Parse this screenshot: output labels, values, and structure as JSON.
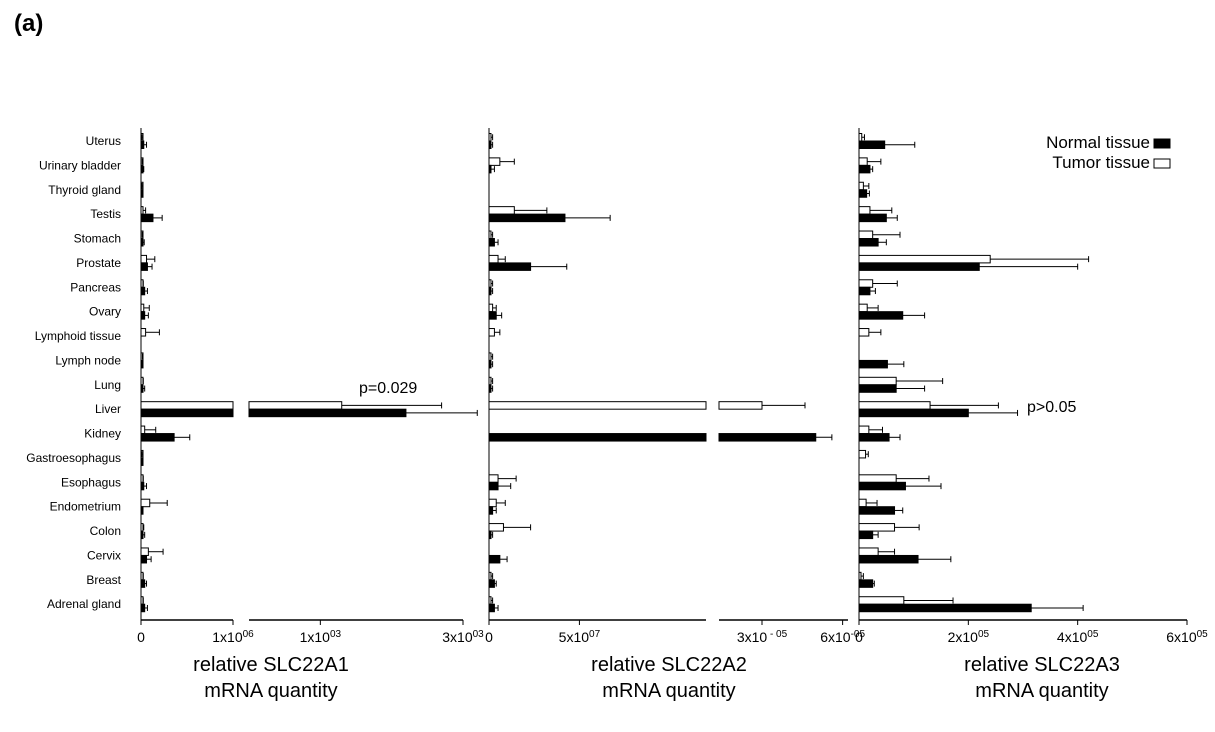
{
  "panel_label": "(a)",
  "colors": {
    "normal": "#000000",
    "tumor": "#ffffff",
    "axis": "#000000"
  },
  "chart_data": {
    "type": "bar",
    "orientation": "horizontal",
    "grouped": true,
    "error_bars": true,
    "legend": {
      "placement": "top-right",
      "entries": [
        {
          "series": "normal",
          "label": "Normal tissue",
          "color": "#000000"
        },
        {
          "series": "tumor",
          "label": "Tumor tissue",
          "color": "#ffffff"
        }
      ]
    },
    "categories": [
      "Uterus",
      "Urinary bladder",
      "Thyroid gland",
      "Testis",
      "Stomach",
      "Prostate",
      "Pancreas",
      "Ovary",
      "Lymphoid tissue",
      "Lymph node",
      "Lung",
      "Liver",
      "Kidney",
      "Gastroesophagus",
      "Esophagus",
      "Endometrium",
      "Colon",
      "Cervix",
      "Breast",
      "Adrenal gland"
    ],
    "panels": [
      {
        "xlabel_line1": "relative SLC22A1",
        "xlabel_line2": "mRNA quantity",
        "axis_break": true,
        "segments": [
          {
            "xlim": [
              0,
              1000000
            ],
            "ticks": [
              {
                "value": 0,
                "label": "0"
              },
              {
                "value": 1000000,
                "label": "1x10",
                "exp": "06"
              }
            ]
          },
          {
            "xlim": [
              0,
              3000
            ],
            "ticks": [
              {
                "value": 1000,
                "label": "1x10",
                "exp": "03"
              },
              {
                "value": 3000,
                "label": "3x10",
                "exp": "03"
              }
            ]
          }
        ],
        "annotation": {
          "category": "Liver",
          "text": "p=0.029"
        },
        "series": [
          {
            "id": "tumor",
            "values": [
              {
                "v": 4000,
                "e": 6000
              },
              {
                "v": 5000,
                "e": 8000
              },
              {
                "v": 4000,
                "e": 6000
              },
              {
                "v": 20000,
                "e": 30000
              },
              {
                "v": 5000,
                "e": 8000
              },
              {
                "v": 60000,
                "e": 90000
              },
              {
                "v": 10000,
                "e": 15000
              },
              {
                "v": 30000,
                "e": 60000
              },
              {
                "v": 50000,
                "e": 150000
              },
              {
                "v": 5000,
                "e": 10000
              },
              {
                "v": 10000,
                "e": 15000
              },
              {
                "v": 1300,
                "e": 1400,
                "segment": 1
              },
              {
                "v": 40000,
                "e": 120000
              },
              {
                "v": 5000,
                "e": 5000
              },
              {
                "v": 10000,
                "e": 15000
              },
              {
                "v": 95000,
                "e": 190000
              },
              {
                "v": 10000,
                "e": 20000
              },
              {
                "v": 80000,
                "e": 160000
              },
              {
                "v": 10000,
                "e": 15000
              },
              {
                "v": 10000,
                "e": 15000
              }
            ]
          },
          {
            "id": "normal",
            "values": [
              {
                "v": 30000,
                "e": 30000
              },
              {
                "v": 10000,
                "e": 20000
              },
              {
                "v": 5000,
                "e": 10000
              },
              {
                "v": 130000,
                "e": 100000
              },
              {
                "v": 20000,
                "e": 15000
              },
              {
                "v": 70000,
                "e": 50000
              },
              {
                "v": 40000,
                "e": 30000
              },
              {
                "v": 40000,
                "e": 40000
              },
              {
                "v": 0,
                "e": 0
              },
              {
                "v": 10000,
                "e": 10000
              },
              {
                "v": 20000,
                "e": 20000
              },
              {
                "v": 2200,
                "e": 1000,
                "segment": 1
              },
              {
                "v": 360000,
                "e": 170000
              },
              {
                "v": 5000,
                "e": 5000
              },
              {
                "v": 30000,
                "e": 30000
              },
              {
                "v": 10000,
                "e": 10000
              },
              {
                "v": 20000,
                "e": 20000
              },
              {
                "v": 60000,
                "e": 50000
              },
              {
                "v": 40000,
                "e": 20000
              },
              {
                "v": 40000,
                "e": 30000
              }
            ]
          }
        ]
      },
      {
        "xlabel_line1": "relative  SLC22A2",
        "xlabel_line2": "mRNA  quantity",
        "axis_break": true,
        "segments": [
          {
            "xlim": [
              0,
              120000000
            ],
            "ticks": [
              {
                "value": 0,
                "label": "0"
              },
              {
                "value": 50000000,
                "label": "5x10",
                "exp": "07"
              }
            ]
          },
          {
            "xlim": [
              1.4e-05,
              6.2e-05
            ],
            "ticks": [
              {
                "value": 3e-05,
                "label": "3x10",
                "exp": " - 05"
              },
              {
                "value": 6e-05,
                "label": "6x10",
                "exp": "-05"
              }
            ]
          }
        ],
        "series": [
          {
            "id": "tumor",
            "values": [
              {
                "v": 1000000,
                "e": 1000000
              },
              {
                "v": 6000000,
                "e": 8000000
              },
              {
                "v": 0,
                "e": 0
              },
              {
                "v": 14000000,
                "e": 18000000
              },
              {
                "v": 1000000,
                "e": 1000000
              },
              {
                "v": 5000000,
                "e": 4000000
              },
              {
                "v": 1000000,
                "e": 1000000
              },
              {
                "v": 2000000,
                "e": 2000000
              },
              {
                "v": 3000000,
                "e": 3000000
              },
              {
                "v": 1000000,
                "e": 1000000
              },
              {
                "v": 1000000,
                "e": 1000000
              },
              {
                "v": 3e-05,
                "e": 1.6e-05,
                "segment": 1
              },
              {
                "v": 0,
                "e": 0
              },
              {
                "v": 0,
                "e": 0
              },
              {
                "v": 5000000,
                "e": 10000000
              },
              {
                "v": 4000000,
                "e": 5000000
              },
              {
                "v": 8000000,
                "e": 15000000
              },
              {
                "v": 0,
                "e": 0
              },
              {
                "v": 1000000,
                "e": 1000000
              },
              {
                "v": 1000000,
                "e": 1000000
              }
            ]
          },
          {
            "id": "normal",
            "values": [
              {
                "v": 1000000,
                "e": 1000000
              },
              {
                "v": 1000000,
                "e": 2000000
              },
              {
                "v": 0,
                "e": 0
              },
              {
                "v": 42000000,
                "e": 25000000
              },
              {
                "v": 3000000,
                "e": 2000000
              },
              {
                "v": 23000000,
                "e": 20000000
              },
              {
                "v": 1000000,
                "e": 1000000
              },
              {
                "v": 4000000,
                "e": 3000000
              },
              {
                "v": 0,
                "e": 0
              },
              {
                "v": 1000000,
                "e": 1000000
              },
              {
                "v": 1000000,
                "e": 1000000
              },
              {
                "v": 0,
                "e": 0
              },
              {
                "v": 5e-05,
                "e": 6e-06,
                "segment": 1
              },
              {
                "v": 0,
                "e": 0
              },
              {
                "v": 5000000,
                "e": 7000000
              },
              {
                "v": 2000000,
                "e": 2000000
              },
              {
                "v": 1000000,
                "e": 1000000
              },
              {
                "v": 6000000,
                "e": 4000000
              },
              {
                "v": 3000000,
                "e": 1000000
              },
              {
                "v": 3000000,
                "e": 2000000
              }
            ]
          }
        ]
      },
      {
        "xlabel_line1": "relative  SLC22A3",
        "xlabel_line2": "mRNA  quantity",
        "axis_break": false,
        "segments": [
          {
            "xlim": [
              0,
              600000
            ],
            "ticks": [
              {
                "value": 0,
                "label": "0"
              },
              {
                "value": 200000,
                "label": "2x10",
                "exp": "05"
              },
              {
                "value": 400000,
                "label": "4x10",
                "exp": "05"
              },
              {
                "value": 600000,
                "label": "6x10",
                "exp": "05"
              }
            ]
          }
        ],
        "annotation": {
          "category": "Liver",
          "text": "p>0.05"
        },
        "series": [
          {
            "id": "tumor",
            "values": [
              {
                "v": 5000,
                "e": 5000
              },
              {
                "v": 15000,
                "e": 25000
              },
              {
                "v": 8000,
                "e": 10000
              },
              {
                "v": 20000,
                "e": 40000
              },
              {
                "v": 25000,
                "e": 50000
              },
              {
                "v": 240000,
                "e": 180000
              },
              {
                "v": 25000,
                "e": 45000
              },
              {
                "v": 15000,
                "e": 20000
              },
              {
                "v": 18000,
                "e": 22000
              },
              {
                "v": 0,
                "e": 0
              },
              {
                "v": 68000,
                "e": 85000
              },
              {
                "v": 130000,
                "e": 125000
              },
              {
                "v": 18000,
                "e": 25000
              },
              {
                "v": 12000,
                "e": 5000
              },
              {
                "v": 68000,
                "e": 60000
              },
              {
                "v": 13000,
                "e": 20000
              },
              {
                "v": 65000,
                "e": 45000
              },
              {
                "v": 35000,
                "e": 30000
              },
              {
                "v": 3000,
                "e": 5000
              },
              {
                "v": 82000,
                "e": 90000
              }
            ]
          },
          {
            "id": "normal",
            "values": [
              {
                "v": 47000,
                "e": 55000
              },
              {
                "v": 20000,
                "e": 5000
              },
              {
                "v": 14000,
                "e": 5000
              },
              {
                "v": 50000,
                "e": 20000
              },
              {
                "v": 35000,
                "e": 15000
              },
              {
                "v": 220000,
                "e": 180000
              },
              {
                "v": 20000,
                "e": 10000
              },
              {
                "v": 80000,
                "e": 40000
              },
              {
                "v": 0,
                "e": 0
              },
              {
                "v": 52000,
                "e": 30000
              },
              {
                "v": 68000,
                "e": 52000
              },
              {
                "v": 200000,
                "e": 90000
              },
              {
                "v": 55000,
                "e": 20000
              },
              {
                "v": 0,
                "e": 0
              },
              {
                "v": 85000,
                "e": 65000
              },
              {
                "v": 65000,
                "e": 15000
              },
              {
                "v": 25000,
                "e": 10000
              },
              {
                "v": 108000,
                "e": 60000
              },
              {
                "v": 25000,
                "e": 3000
              },
              {
                "v": 315000,
                "e": 95000
              }
            ]
          }
        ]
      }
    ]
  }
}
